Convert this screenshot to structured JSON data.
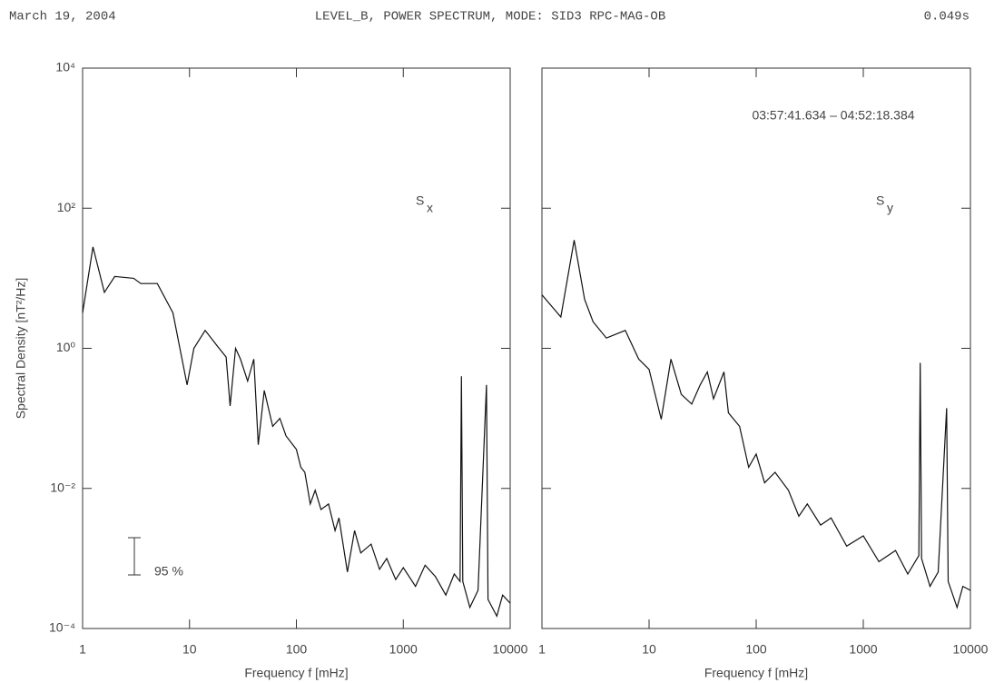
{
  "header": {
    "date": "March 19, 2004",
    "title": "LEVEL_B, POWER SPECTRUM, MODE: SID3 RPC-MAG-OB",
    "duration": "0.049s"
  },
  "chart_data": [
    {
      "type": "line",
      "xscale": "log",
      "yscale": "log",
      "xlabel": "Frequency f [mHz]",
      "ylabel": "Spectral Density [nT²/Hz]",
      "label": "S",
      "label_sub": "x",
      "confidence_label": "95 %",
      "xlim": [
        1,
        10000
      ],
      "ylim": [
        0.0001,
        10000
      ],
      "xticks": [
        1,
        10,
        100,
        1000,
        10000
      ],
      "yticks": [
        {
          "value": 0.0001,
          "label": "10⁻⁴"
        },
        {
          "value": 0.01,
          "label": "10⁻²"
        },
        {
          "value": 1,
          "label": "10⁰"
        },
        {
          "value": 100,
          "label": "10²"
        },
        {
          "value": 10000,
          "label": "10⁴"
        }
      ],
      "series": [
        {
          "color": "#111",
          "x": [
            1,
            1.25,
            1.6,
            2,
            3,
            3.5,
            5,
            7,
            9.5,
            11,
            14,
            18,
            22,
            24,
            27,
            30,
            35,
            40,
            44,
            50,
            60,
            70,
            80,
            100,
            110,
            120,
            135,
            150,
            170,
            200,
            230,
            250,
            300,
            350,
            400,
            500,
            600,
            700,
            850,
            1000,
            1300,
            1600,
            2000,
            2500,
            3000,
            3400,
            3500,
            3600,
            4200,
            5000,
            6000,
            6200,
            7500,
            8500,
            10000
          ],
          "values": [
            3.2,
            28,
            6.3,
            10.6,
            10,
            8.4,
            8.4,
            3.2,
            0.3,
            1.0,
            1.8,
            1.1,
            0.75,
            0.15,
            1.0,
            0.7,
            0.34,
            0.7,
            0.042,
            0.25,
            0.077,
            0.1,
            0.056,
            0.036,
            0.02,
            0.017,
            0.006,
            0.0094,
            0.005,
            0.006,
            0.0025,
            0.0038,
            0.00064,
            0.0025,
            0.0012,
            0.0016,
            0.0007,
            0.001,
            0.0005,
            0.00074,
            0.0004,
            0.0008,
            0.00055,
            0.0003,
            0.0006,
            0.00047,
            0.4,
            0.00047,
            0.0002,
            0.00035,
            0.3,
            0.00026,
            0.00015,
            0.0003,
            0.00023
          ]
        }
      ]
    },
    {
      "type": "line",
      "xscale": "log",
      "yscale": "log",
      "xlabel": "Frequency f [mHz]",
      "label": "S",
      "label_sub": "y",
      "time_range": "03:57:41.634  –  04:52:18.384",
      "xlim": [
        1,
        10000
      ],
      "ylim": [
        0.0001,
        10000
      ],
      "xticks": [
        1,
        10,
        100,
        1000,
        10000
      ],
      "yticks": [
        0.0001,
        0.01,
        1,
        100,
        10000
      ],
      "series": [
        {
          "color": "#111",
          "x": [
            1,
            1.5,
            2,
            2.5,
            3,
            4,
            6,
            8,
            10,
            13,
            16,
            20,
            25,
            30,
            35,
            40,
            50,
            55,
            70,
            85,
            100,
            120,
            150,
            200,
            250,
            300,
            400,
            500,
            700,
            1000,
            1400,
            2000,
            2600,
            3300,
            3400,
            3500,
            4200,
            5000,
            6000,
            6200,
            7500,
            8500,
            10000
          ],
          "values": [
            5.8,
            2.8,
            35,
            5,
            2.4,
            1.4,
            1.8,
            0.7,
            0.5,
            0.097,
            0.7,
            0.22,
            0.16,
            0.3,
            0.46,
            0.19,
            0.46,
            0.12,
            0.077,
            0.02,
            0.031,
            0.012,
            0.017,
            0.0094,
            0.004,
            0.006,
            0.003,
            0.0038,
            0.0015,
            0.0021,
            0.0009,
            0.0013,
            0.0006,
            0.0011,
            0.62,
            0.001,
            0.0004,
            0.00064,
            0.14,
            0.00047,
            0.0002,
            0.0004,
            0.00035
          ]
        }
      ]
    }
  ]
}
